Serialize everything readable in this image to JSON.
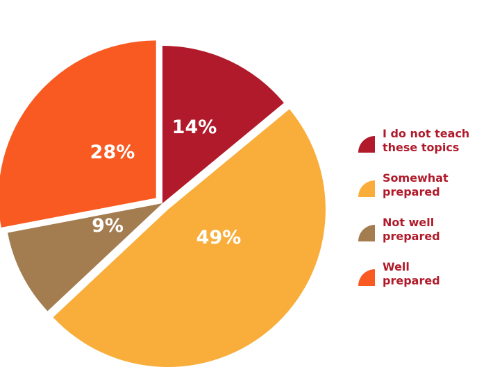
{
  "chart_data": {
    "type": "pie",
    "title": "",
    "slices": [
      {
        "label": "I do not teach these topics",
        "value": 14,
        "value_label": "14%",
        "color": "#b01a2a",
        "exploded": false
      },
      {
        "label": "Somewhat prepared",
        "value": 49,
        "value_label": "49%",
        "color": "#f9ae3b",
        "exploded": true
      },
      {
        "label": "Not well prepared",
        "value": 9,
        "value_label": "9%",
        "color": "#a37c50",
        "exploded": false
      },
      {
        "label": "Well prepared",
        "value": 28,
        "value_label": "28%",
        "color": "#f95a22",
        "exploded": true
      }
    ],
    "legend_entries": [
      {
        "lines": [
          "I do not teach",
          "these topics"
        ],
        "color": "#b01a2a"
      },
      {
        "lines": [
          "Somewhat",
          "prepared"
        ],
        "color": "#f9ae3b"
      },
      {
        "lines": [
          "Not well",
          "prepared"
        ],
        "color": "#a37c50"
      },
      {
        "lines": [
          "Well",
          "prepared"
        ],
        "color": "#f95a22"
      }
    ],
    "legend_position": "right",
    "legend_text_color": "#b01a2a"
  }
}
